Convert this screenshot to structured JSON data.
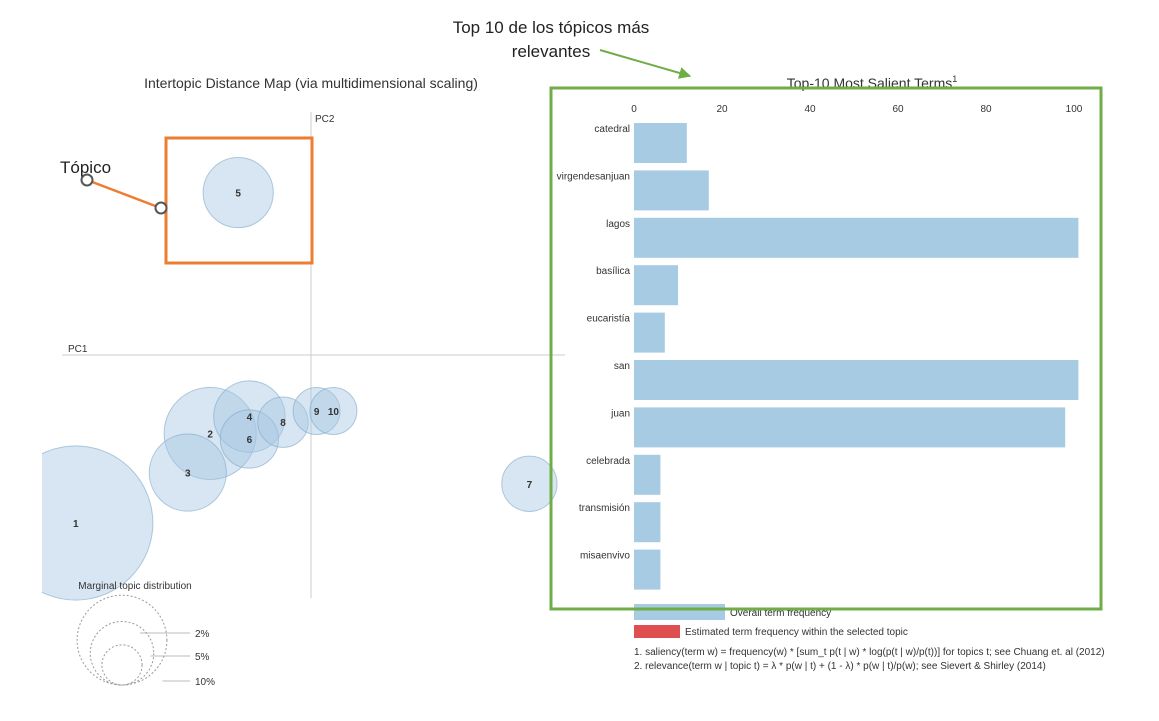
{
  "annotations": {
    "top_callout_line1": "Top 10 de los tópicos más",
    "top_callout_line2": "relevantes",
    "topic_callout": "Tópico"
  },
  "colors": {
    "circle_fill": "#a6c8e2",
    "circle_stroke": "#7fa9c8",
    "bar_fill": "#a6cbe3",
    "selected_fill": "#e04f4f",
    "orange_box": "#ed7d31",
    "green_box": "#70ad47",
    "axis_gray": "#cccccc"
  },
  "chart_data": [
    {
      "type": "scatter",
      "title": "Intertopic Distance Map (via multidimensional scaling)",
      "xlabel": "PC1",
      "ylabel": "PC2",
      "topics": [
        {
          "id": "1",
          "x": -0.42,
          "y": -0.3,
          "share": 14.0
        },
        {
          "id": "2",
          "x": -0.18,
          "y": -0.14,
          "share": 5.0
        },
        {
          "id": "3",
          "x": -0.22,
          "y": -0.21,
          "share": 3.5
        },
        {
          "id": "4",
          "x": -0.11,
          "y": -0.11,
          "share": 3.0
        },
        {
          "id": "5",
          "x": -0.13,
          "y": 0.29,
          "share": 2.9
        },
        {
          "id": "6",
          "x": -0.11,
          "y": -0.15,
          "share": 2.0
        },
        {
          "id": "7",
          "x": 0.39,
          "y": -0.23,
          "share": 1.8
        },
        {
          "id": "8",
          "x": -0.05,
          "y": -0.12,
          "share": 1.5
        },
        {
          "id": "9",
          "x": 0.01,
          "y": -0.1,
          "share": 1.3
        },
        {
          "id": "10",
          "x": 0.04,
          "y": -0.1,
          "share": 1.3
        }
      ],
      "legend": {
        "title": "Marginal topic distribution",
        "items": [
          {
            "label": "2%",
            "share": 2
          },
          {
            "label": "5%",
            "share": 5
          },
          {
            "label": "10%",
            "share": 10
          }
        ]
      }
    },
    {
      "type": "bar",
      "orientation": "horizontal",
      "title": "Top-10 Most Salient Terms",
      "title_superscript": "1",
      "xlim": [
        0,
        100
      ],
      "ticks": [
        "0",
        "20",
        "40",
        "60",
        "80",
        "100"
      ],
      "categories": [
        "catedral",
        "virgendesanjuan",
        "lagos",
        "basílica",
        "eucaristía",
        "san",
        "juan",
        "celebrada",
        "transmisión",
        "misaenvivo"
      ],
      "values": [
        12,
        17,
        101,
        10,
        7,
        101,
        98,
        6,
        6,
        6
      ],
      "legend": [
        {
          "label": "Overall term frequency",
          "color": "#a6cbe3"
        },
        {
          "label": "Estimated term frequency within the selected topic",
          "color": "#e04f4f"
        }
      ],
      "footnotes": [
        "1. saliency(term w) = frequency(w) * [sum_t p(t | w) * log(p(t | w)/p(t))] for topics t; see Chuang et. al (2012)",
        "2. relevance(term w | topic t) = λ * p(w | t) + (1 - λ) * p(w | t)/p(w); see Sievert & Shirley (2014)"
      ]
    }
  ]
}
